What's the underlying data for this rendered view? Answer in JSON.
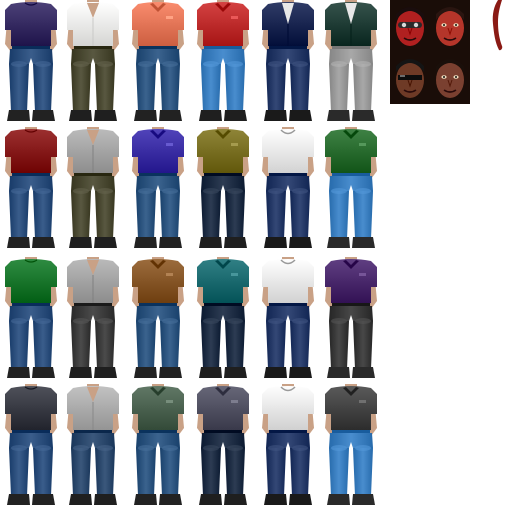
{
  "atlas": {
    "rows": [
      [
        {
          "shirt": "#3a2f66",
          "shirt_style": "tee",
          "pants": "#2c4f7d",
          "shoes": "#222222"
        },
        {
          "shirt": "#f1f1ef",
          "shirt_style": "open",
          "pants": "#4b4a33",
          "shoes": "#1f1f1f"
        },
        {
          "shirt": "#e87a5c",
          "shirt_style": "polo",
          "pants": "#2d5580",
          "shoes": "#222222"
        },
        {
          "shirt": "#c23030",
          "shirt_style": "polo",
          "pants": "#3b7fc0",
          "shoes": "#1f1f1f"
        },
        {
          "shirt": "#1e2a55",
          "shirt_style": "jacket",
          "pants": "#263a68",
          "shoes": "#1a1a1a"
        },
        {
          "shirt": "#24413a",
          "shirt_style": "jacket",
          "pants": "#9a9a9a",
          "shoes": "#2a2a2a"
        }
      ],
      [
        {
          "shirt": "#8a1e1e",
          "shirt_style": "tee",
          "pants": "#2c4f7d",
          "shoes": "#222222"
        },
        {
          "shirt": "#a9a9a9",
          "shirt_style": "open",
          "pants": "#4b4a33",
          "shoes": "#1f1f1f"
        },
        {
          "shirt": "#3f32a8",
          "shirt_style": "polo",
          "pants": "#2d5580",
          "shoes": "#222222"
        },
        {
          "shirt": "#7d7326",
          "shirt_style": "polo",
          "pants": "#1f2e45",
          "shoes": "#1f1f1f"
        },
        {
          "shirt": "#eeeeee",
          "shirt_style": "sweater",
          "pants": "#263a68",
          "shoes": "#1a1a1a"
        },
        {
          "shirt": "#2d7033",
          "shirt_style": "polo",
          "pants": "#3b7fc0",
          "shoes": "#2a2a2a"
        }
      ],
      [
        {
          "shirt": "#1d7a30",
          "shirt_style": "tee",
          "pants": "#2c4f7d",
          "shoes": "#222222"
        },
        {
          "shirt": "#a8a8a8",
          "shirt_style": "open",
          "pants": "#3d3d3d",
          "shoes": "#1f1f1f"
        },
        {
          "shirt": "#8a5a2b",
          "shirt_style": "polo",
          "pants": "#2d5580",
          "shoes": "#222222"
        },
        {
          "shirt": "#1f6e73",
          "shirt_style": "polo",
          "pants": "#1f2e45",
          "shoes": "#1f1f1f"
        },
        {
          "shirt": "#ededed",
          "shirt_style": "sweater",
          "pants": "#263a68",
          "shoes": "#1a1a1a"
        },
        {
          "shirt": "#4e2d70",
          "shirt_style": "polo",
          "pants": "#3a3a3a",
          "shoes": "#2a2a2a"
        }
      ],
      [
        {
          "shirt": "#3d3f48",
          "shirt_style": "tee",
          "pants": "#2c4f7d",
          "shoes": "#222222"
        },
        {
          "shirt": "#b0b0b0",
          "shirt_style": "open",
          "pants": "#2d4a6e",
          "shoes": "#1f1f1f"
        },
        {
          "shirt": "#4f6654",
          "shirt_style": "polo",
          "pants": "#2d5580",
          "shoes": "#222222"
        },
        {
          "shirt": "#555566",
          "shirt_style": "polo",
          "pants": "#1f2e45",
          "shoes": "#1f1f1f"
        },
        {
          "shirt": "#ececec",
          "shirt_style": "sweater",
          "pants": "#263a68",
          "shoes": "#1a1a1a"
        },
        {
          "shirt": "#484848",
          "shirt_style": "polo",
          "pants": "#3b7fc0",
          "shoes": "#2a2a2a"
        }
      ]
    ],
    "portraits": [
      {
        "skin": "#b02020",
        "hair": "#1a0d0d",
        "eyewear": "goggles"
      },
      {
        "skin": "#b5352a",
        "hair": "#2a1510",
        "eyewear": "none"
      },
      {
        "skin": "#6e3a26",
        "hair": "#141414",
        "eyewear": "shades"
      },
      {
        "skin": "#7a4030",
        "hair": "#1a0f0a",
        "eyewear": "none"
      }
    ],
    "hand_color": "#8a1a14"
  }
}
